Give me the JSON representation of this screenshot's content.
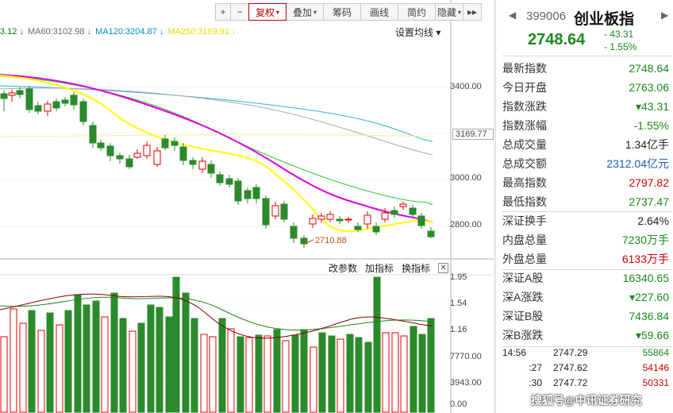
{
  "toolbar": {
    "items": [
      {
        "label": "+",
        "width": 20,
        "active": false,
        "caret": false
      },
      {
        "label": "−",
        "width": 24,
        "active": false,
        "caret": false
      },
      {
        "label": "复权",
        "width": 48,
        "active": true,
        "caret": true
      },
      {
        "label": "叠加",
        "width": 48,
        "active": false,
        "caret": true
      },
      {
        "label": "筹码",
        "width": 48,
        "active": false,
        "caret": false
      },
      {
        "label": "画线",
        "width": 48,
        "active": false,
        "caret": false
      },
      {
        "label": "简约",
        "width": 48,
        "active": false,
        "caret": false
      },
      {
        "label": "隐藏",
        "width": 36,
        "active": false,
        "caret": true
      },
      {
        "label": "▸▸",
        "width": 24,
        "active": false,
        "caret": false
      }
    ]
  },
  "ma_legend": [
    {
      "text": "3.12 ↓",
      "color": "#008000"
    },
    {
      "text": "MA60:3102.98 ↓",
      "color": "#666666"
    },
    {
      "text": "MA120:3204.87 ↓",
      "color": "#008fbf"
    },
    {
      "text": "MA250:3169.91 ↓",
      "color": "#e0e000"
    }
  ],
  "ma_settings_label": "设置均线 ▾",
  "price_axis": [
    "3400.00",
    "3169.77",
    "3000.00",
    "2800.00"
  ],
  "low_annotation": "2710.88",
  "sub_header": {
    "params": "改参数",
    "add": "加指标",
    "switch": "换指标",
    "close": "✕"
  },
  "vol_axis": [
    "1.95",
    "1.54",
    "1.16",
    "7770.00",
    "3943.00",
    "0.00"
  ],
  "colors": {
    "up": "#e00000",
    "down": "#2b8a2b",
    "ma5": "#ffff00",
    "ma10": "#e000e0",
    "ma20": "#33cc33"
  },
  "quote": {
    "code": "399006",
    "name": "创业板指",
    "price": "2748.64",
    "change": "- 43.31",
    "change_pct": "- 1.55%"
  },
  "stats_a": [
    {
      "k": "最新指数",
      "v": "2748.64",
      "color": "#1a8a1a"
    },
    {
      "k": "今日开盘",
      "v": "2763.06",
      "color": "#1a8a1a"
    },
    {
      "k": "指数涨跌",
      "v": "▾43.31",
      "color": "#1a8a1a"
    },
    {
      "k": "指数涨幅",
      "v": "-1.55%",
      "color": "#1a8a1a"
    },
    {
      "k": "总成交量",
      "v": "1.34亿手",
      "color": "#222222"
    },
    {
      "k": "总成交额",
      "v": "2312.04亿元",
      "color": "#1a5fb4"
    },
    {
      "k": "最高指数",
      "v": "2797.82",
      "color": "#d00000"
    },
    {
      "k": "最低指数",
      "v": "2737.47",
      "color": "#1a8a1a"
    }
  ],
  "stats_b": [
    {
      "k": "深证换手",
      "v": "2.64%",
      "color": "#222222"
    },
    {
      "k": "内盘总量",
      "v": "7230万手",
      "color": "#1a8a1a"
    },
    {
      "k": "外盘总量",
      "v": "6133万手",
      "color": "#d00000"
    }
  ],
  "stats_c": [
    {
      "k": "深证A股",
      "v": "16340.65",
      "color": "#1a8a1a"
    },
    {
      "k": "深A涨跌",
      "v": "▾227.60",
      "color": "#1a8a1a"
    },
    {
      "k": "深证B股",
      "v": "7436.84",
      "color": "#1a8a1a"
    },
    {
      "k": "深B涨跌",
      "v": "▾59.66",
      "color": "#1a8a1a"
    }
  ],
  "trades": [
    {
      "time": "14:56",
      "price": "2747.29",
      "vol": "55864",
      "vcolor": "#1a8a1a"
    },
    {
      "time": ":27",
      "price": "2747.62",
      "vol": "54146",
      "vcolor": "#d00000"
    },
    {
      "time": ":30",
      "price": "2747.72",
      "vol": "50331",
      "vcolor": "#d00000"
    }
  ],
  "watermark": "搜狐号@中讯证券研究"
}
